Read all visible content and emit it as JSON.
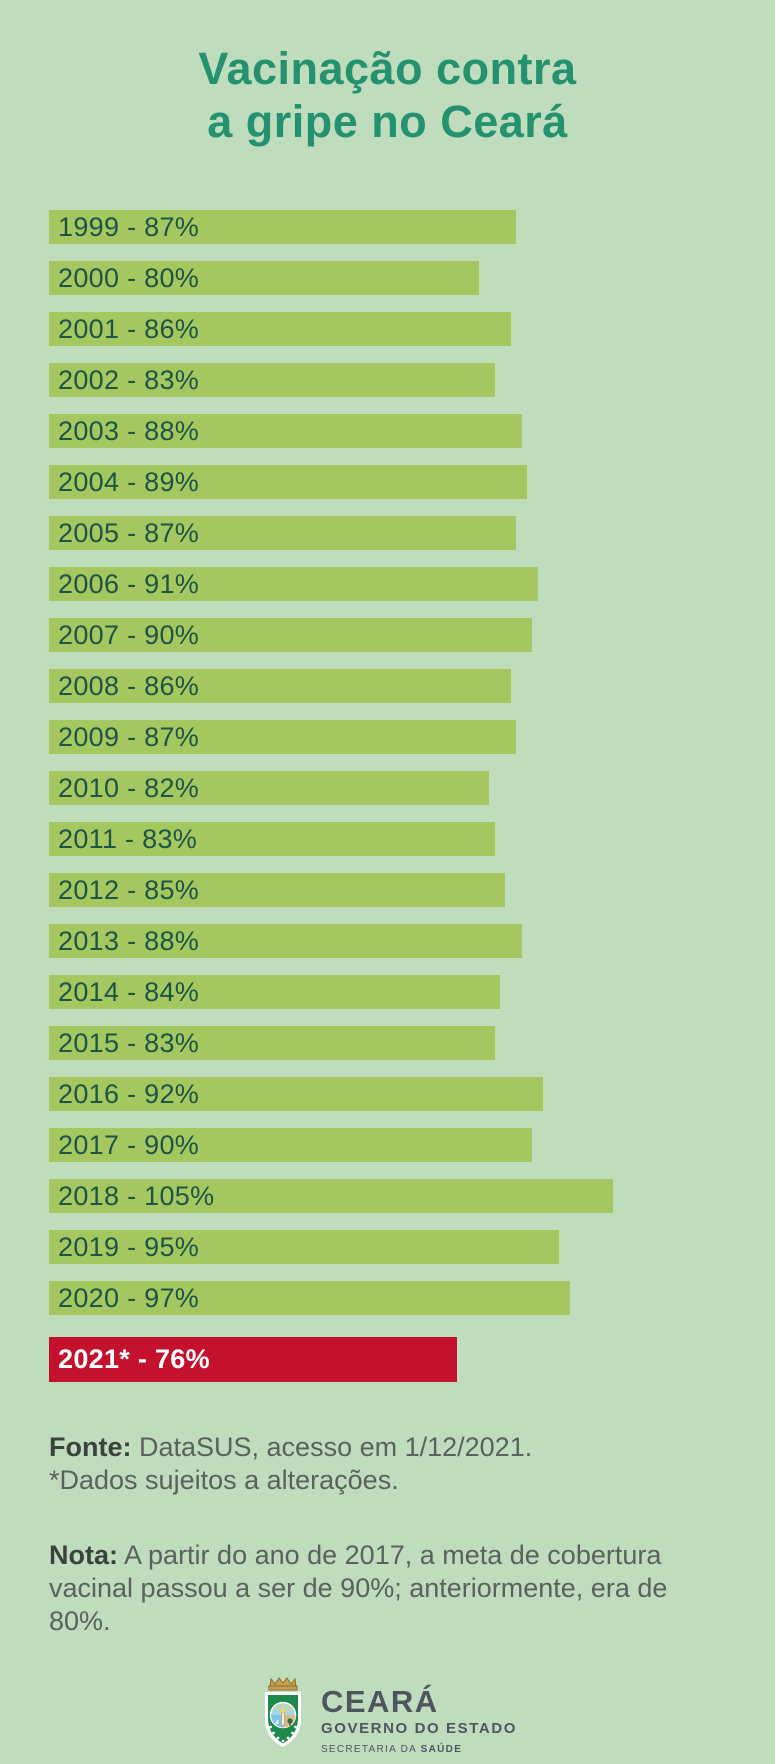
{
  "title": {
    "lines": [
      "Vacinação contra",
      "a gripe no Ceará"
    ]
  },
  "chart_data": {
    "type": "bar",
    "orientation": "horizontal",
    "title": "Vacinação contra a gripe no Ceará",
    "xlabel": "",
    "ylabel": "",
    "xlim": [
      0,
      105
    ],
    "unit": "%",
    "categories": [
      "1999",
      "2000",
      "2001",
      "2002",
      "2003",
      "2004",
      "2005",
      "2006",
      "2007",
      "2008",
      "2009",
      "2010",
      "2011",
      "2012",
      "2013",
      "2014",
      "2015",
      "2016",
      "2017",
      "2018",
      "2019",
      "2020",
      "2021*"
    ],
    "values": [
      87,
      80,
      86,
      83,
      88,
      89,
      87,
      91,
      90,
      86,
      87,
      82,
      83,
      85,
      88,
      84,
      83,
      92,
      90,
      105,
      95,
      97,
      76
    ],
    "labels": [
      "1999 - 87%",
      "2000 - 80%",
      "2001 - 86%",
      "2002 - 83%",
      "2003 - 88%",
      "2004 - 89%",
      "2005 - 87%",
      "2006 - 91%",
      "2007 - 90%",
      "2008 - 86%",
      "2009 - 87%",
      "2010 - 82%",
      "2011 - 83%",
      "2012 - 85%",
      "2013 - 88%",
      "2014 - 84%",
      "2015 - 83%",
      "2016 - 92%",
      "2017 - 90%",
      "2018 - 105%",
      "2019 - 95%",
      "2020 - 97%",
      "2021* - 76%"
    ],
    "bar_color": "#a4c85f",
    "highlight_color": "#c3112e",
    "highlight_index": 22,
    "grid": false,
    "legend": false
  },
  "footer": {
    "fonte_label": "Fonte:",
    "fonte_text": " DataSUS, acesso em 1/12/2021.",
    "fonte_note": "*Dados sujeitos a alterações.",
    "nota_label": "Nota:",
    "nota_text": " A partir do ano de 2017, a meta de cobertura vacinal passou a ser de 90%; anteriormente, era de 80%."
  },
  "logo": {
    "name": "CEARÁ",
    "subtitle": "GOVERNO DO ESTADO",
    "department_prefix": "SECRETARIA DA ",
    "department_bold": "SAÚDE"
  },
  "colors": {
    "background": "#bfdcbd",
    "title": "#24926f",
    "bar": "#a4c85f",
    "bar_text": "#1d5447",
    "highlight_bar": "#c3112e",
    "highlight_text": "#ffffff",
    "footer_text": "#59625c",
    "logo_text": "#4d565f"
  }
}
